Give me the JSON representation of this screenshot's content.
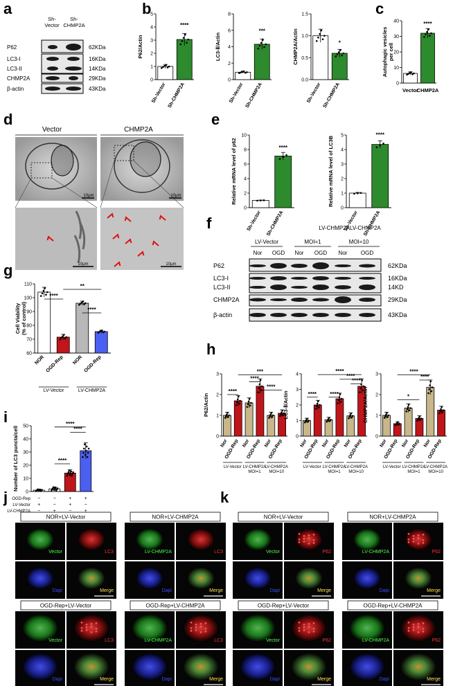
{
  "panel_letters": [
    "a",
    "b",
    "c",
    "d",
    "e",
    "f",
    "g",
    "h",
    "i",
    "j",
    "k"
  ],
  "colors": {
    "ctrl": "#ffffff",
    "treat_green": "#2d8a2d",
    "red": "#c0151a",
    "khaki": "#c9b68a",
    "blue": "#4b5ff0",
    "grey": "#b8b8b8"
  },
  "panel_a": {
    "col_labels": [
      "Sh-\nVector",
      "Sh-\nCHMP2A"
    ],
    "col_label_lines": [
      [
        "Sh-",
        "Vector"
      ],
      [
        "Sh-",
        "CHMP2A"
      ]
    ],
    "rows": [
      "P62",
      "LC3-I",
      "LC3-II",
      "CHMP2A",
      "β-actin"
    ],
    "sizes": [
      "62KDa",
      "16KDa",
      "14KDa",
      "29KDa",
      "43KDa"
    ]
  },
  "panel_b": [
    {
      "ylabel": "P62/Actin",
      "ymax": 5,
      "ticks": [
        "0",
        "1",
        "2",
        "3",
        "4",
        "5"
      ],
      "sig": "****",
      "values": [
        1.0,
        3.05
      ],
      "categories": [
        "Sh-Vector",
        "Sh-CHMP2A"
      ]
    },
    {
      "ylabel": "LC3-Ⅱ/Actin",
      "ymax": 8,
      "ticks": [
        "0",
        "2",
        "4",
        "6",
        "8"
      ],
      "sig": "***",
      "values": [
        0.9,
        4.3
      ],
      "categories": [
        "Sh-Vector",
        "Sh-CHMP2A"
      ]
    },
    {
      "ylabel": "CHMP2A/Actin",
      "ymax": 1.5,
      "ticks": [
        "0.0",
        "0.5",
        "1.0",
        "1.5"
      ],
      "sig": "*",
      "values": [
        1.0,
        0.6
      ],
      "categories": [
        "Sh-Vector",
        "Sh-CHMP2A"
      ]
    }
  ],
  "panel_c": {
    "ylabel": "Autophagic vesicles per cell",
    "ylabel_lines": [
      "Autophagic vesicles",
      "per cell"
    ],
    "ymax": 40,
    "ticks": [
      "0",
      "10",
      "20",
      "30",
      "40"
    ],
    "sig": "****",
    "values": [
      6.2,
      32
    ],
    "categories": [
      "Vector",
      "CHMP2A"
    ]
  },
  "panel_d": {
    "headers": [
      "Vector",
      "CHMP2A"
    ],
    "scale_top": "10μm",
    "scale_bottom": "10μm"
  },
  "panel_e": [
    {
      "ylabel": "Relative mRNA level of p62",
      "ymax": 10,
      "ticks": [
        "0",
        "2",
        "4",
        "6",
        "8",
        "10"
      ],
      "sig": "****",
      "values": [
        1.0,
        7.1
      ],
      "categories": [
        "Sh-Vector",
        "Sh-CHMP2A"
      ]
    },
    {
      "ylabel": "Relative mRNA level of LC3B",
      "ymax": 5,
      "ticks": [
        "0",
        "1",
        "2",
        "3",
        "4",
        "5"
      ],
      "sig": "****",
      "values": [
        1.0,
        4.35
      ],
      "categories": [
        "Sh-Vector",
        "Sh-CHMP2A"
      ]
    }
  ],
  "panel_f": {
    "top_header": "LV-CHMP2ALV-CHMP2A",
    "groups": [
      "LV-Vector",
      "MOI=1",
      "MOI=10"
    ],
    "lanes": [
      "Nor",
      "OGD",
      "Nor",
      "OGD",
      "Nor",
      "OGD"
    ],
    "rows": [
      "P62",
      "LC3-I",
      "LC3-II",
      "CHMP2A",
      "β-actin"
    ],
    "sizes": [
      "62KDa",
      "16KDa",
      "14KD",
      "29KDa",
      "43KDa"
    ]
  },
  "panel_g": {
    "ylabel": "Cell Viability (% of control)",
    "ylabel_lines": [
      "Cell Viability",
      "(% of control)"
    ],
    "ymin": 60,
    "ymax": 110,
    "ticks": [
      "60",
      "70",
      "80",
      "90",
      "100",
      "110"
    ],
    "categories": [
      "NOR",
      "OGD-Rep",
      "NOR",
      "OGD-Rep"
    ],
    "values": [
      104,
      71.5,
      96,
      75.5
    ],
    "groups": [
      "LV-Vector",
      "LV-CHMP2A"
    ],
    "sigs": [
      "****",
      "**",
      "****"
    ]
  },
  "panel_h": [
    {
      "ylabel": "P62/Actin",
      "ymax": 3,
      "ticks": [
        "0",
        "1",
        "2",
        "3"
      ],
      "values": [
        1.0,
        1.7,
        1.6,
        2.4,
        1.0,
        1.1
      ],
      "sigs": [
        "***",
        "****",
        "****",
        "****"
      ]
    },
    {
      "ylabel": "LC3-Ⅱ/Actin",
      "ymax": 4,
      "ticks": [
        "0",
        "1",
        "2",
        "3",
        "4"
      ],
      "values": [
        1.0,
        2.0,
        1.05,
        2.4,
        1.3,
        3.2
      ],
      "sigs": [
        "****",
        "****",
        "****",
        "****"
      ]
    },
    {
      "ylabel": "CHMP2A/Actin",
      "ymax": 3,
      "ticks": [
        "0",
        "1",
        "2",
        "3"
      ],
      "values": [
        1.0,
        0.6,
        1.35,
        0.85,
        2.35,
        1.25
      ],
      "sigs": [
        "****",
        "*",
        "****"
      ]
    }
  ],
  "panel_h_labels": {
    "cats": [
      "Nor",
      "OGD-Rep",
      "Nor",
      "OGD-Rep",
      "Nor",
      "OGD-Rep"
    ],
    "groups": [
      "LV-Vector",
      "LV-CHMP2A MOI=1",
      "LV-CHMP2A MOI=10"
    ]
  },
  "panel_i": {
    "ylabel": "Number of LC3 puncta/cell",
    "ymax": 50,
    "ticks": [
      "0",
      "10",
      "20",
      "30",
      "40",
      "50"
    ],
    "values": [
      1,
      2,
      14,
      31
    ],
    "sigs": [
      "****",
      "****",
      "****"
    ],
    "row_labels": [
      "OGD-Rep",
      "LV-Vector",
      "LV-CHMP2A"
    ],
    "signs": [
      [
        "−",
        "−",
        "+",
        "+"
      ],
      [
        "+",
        "−",
        "+",
        "−"
      ],
      [
        "−",
        "+",
        "−",
        "+"
      ]
    ]
  },
  "panel_j": {
    "titles": [
      "NOR+LV-Vector",
      "NOR+LV-CHMP2A",
      "OGD-Rep+LV-Vector",
      "OGD-Rep+LV-CHMP2A"
    ],
    "tiles": [
      [
        "Vector",
        "LC3",
        "Dapi",
        "Merge"
      ],
      [
        "LV-CHMP2A",
        "LC3",
        "Dapi",
        "Merge"
      ],
      [
        "Vector",
        "LC3",
        "Dapi",
        "Merge"
      ],
      [
        "LV-CHMP2A",
        "LC3",
        "Dapi",
        "Merge"
      ]
    ]
  },
  "panel_k": {
    "titles": [
      "NOR+LV-Vector",
      "NOR+LV-CHMP2A",
      "OGD-Rep+LV-Vector",
      "OGD-Rep+LV-CHMP2A"
    ],
    "tiles": [
      [
        "Vector",
        "P62",
        "Dapi",
        "Merge"
      ],
      [
        "LV-CHMP2A",
        "P62",
        "Dapi",
        "Merge"
      ],
      [
        "Vector",
        "P62",
        "Dapi",
        "Merge"
      ],
      [
        "LV-CHMP2A",
        "P62",
        "Dapi",
        "Merge"
      ]
    ]
  }
}
